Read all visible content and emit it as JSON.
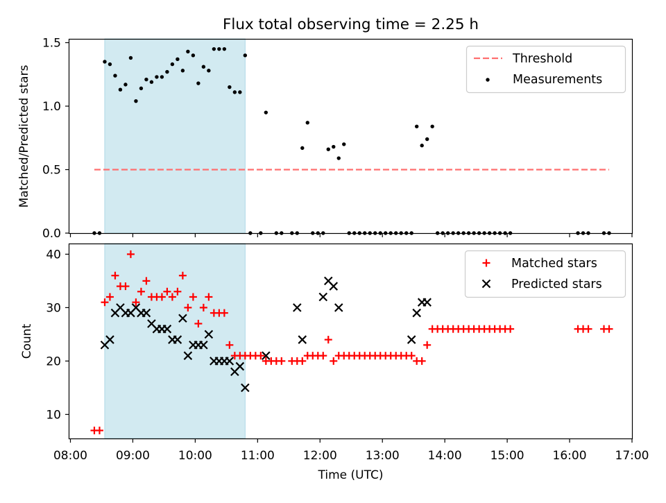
{
  "title": "Flux total observing time = 2.25 h",
  "colors": {
    "measurement": "#000000",
    "threshold": "#ff6f6f",
    "shade": "#add8e6",
    "matched": "#ff0000",
    "predicted": "#000000"
  },
  "chart_data": [
    {
      "type": "scatter",
      "ylabel": "Matched/Predicted stars",
      "ylim": [
        0,
        1.53
      ],
      "yticks": [
        0.0,
        0.5,
        1.0,
        1.5
      ],
      "ytick_labels": [
        "0.0",
        "0.5",
        "1.0",
        "1.5"
      ],
      "shaded_interval": [
        "08:33",
        "10:48"
      ],
      "threshold": 0.5,
      "threshold_x": [
        "08:23",
        "16:38"
      ],
      "legend": {
        "position": "upper right",
        "entries": [
          "Threshold",
          "Measurements"
        ]
      },
      "series": [
        {
          "name": "Measurements",
          "x": [
            "08:23",
            "08:28",
            "08:33",
            "08:38",
            "08:43",
            "08:48",
            "08:53",
            "08:58",
            "09:03",
            "09:08",
            "09:13",
            "09:18",
            "09:23",
            "09:28",
            "09:33",
            "09:38",
            "09:43",
            "09:48",
            "09:53",
            "09:58",
            "10:03",
            "10:08",
            "10:13",
            "10:18",
            "10:23",
            "10:28",
            "10:33",
            "10:38",
            "10:43",
            "10:48",
            "10:53",
            "11:03",
            "11:08",
            "11:18",
            "11:23",
            "11:33",
            "11:38",
            "11:43",
            "11:48",
            "11:53",
            "11:58",
            "12:03",
            "12:08",
            "12:13",
            "12:18",
            "12:23",
            "12:28",
            "12:33",
            "12:38",
            "12:43",
            "12:48",
            "12:53",
            "12:58",
            "13:03",
            "13:08",
            "13:13",
            "13:18",
            "13:23",
            "13:28",
            "13:33",
            "13:38",
            "13:43",
            "13:48",
            "13:53",
            "13:58",
            "14:03",
            "14:08",
            "14:13",
            "14:18",
            "14:23",
            "14:28",
            "14:33",
            "14:38",
            "14:43",
            "14:48",
            "14:53",
            "14:58",
            "15:03",
            "16:08",
            "16:13",
            "16:18",
            "16:33",
            "16:38"
          ],
          "y": [
            0,
            0,
            1.35,
            1.33,
            1.24,
            1.13,
            1.17,
            1.38,
            1.04,
            1.14,
            1.21,
            1.19,
            1.23,
            1.23,
            1.27,
            1.33,
            1.37,
            1.28,
            1.43,
            1.4,
            1.18,
            1.31,
            1.28,
            1.45,
            1.45,
            1.45,
            1.15,
            1.11,
            1.11,
            1.4,
            0,
            0,
            0.95,
            0,
            0,
            0,
            0,
            0.67,
            0.87,
            0,
            0,
            0,
            0.66,
            0.68,
            0.59,
            0.7,
            0,
            0,
            0,
            0,
            0,
            0,
            0,
            0,
            0,
            0,
            0,
            0,
            0,
            0.84,
            0.69,
            0.74,
            0.84,
            0,
            0,
            0,
            0,
            0,
            0,
            0,
            0,
            0,
            0,
            0,
            0,
            0,
            0,
            0,
            0,
            0,
            0,
            0,
            0
          ]
        }
      ]
    },
    {
      "type": "scatter",
      "ylabel": "Count",
      "xlabel": "Time (UTC)",
      "ylim": [
        5.5,
        42
      ],
      "yticks": [
        10,
        20,
        30,
        40
      ],
      "ytick_labels": [
        "10",
        "20",
        "30",
        "40"
      ],
      "xlim": [
        "07:59",
        "17:00"
      ],
      "xticks": [
        "08:00",
        "09:00",
        "10:00",
        "11:00",
        "12:00",
        "13:00",
        "14:00",
        "15:00",
        "16:00",
        "17:00"
      ],
      "shaded_interval": [
        "08:33",
        "10:48"
      ],
      "legend": {
        "position": "upper right",
        "entries": [
          "Matched stars",
          "Predicted stars"
        ]
      },
      "series": [
        {
          "name": "Matched stars",
          "marker": "+",
          "x": [
            "08:23",
            "08:28",
            "08:33",
            "08:38",
            "08:43",
            "08:48",
            "08:53",
            "08:58",
            "09:03",
            "09:08",
            "09:13",
            "09:18",
            "09:23",
            "09:28",
            "09:33",
            "09:38",
            "09:43",
            "09:48",
            "09:53",
            "09:58",
            "10:03",
            "10:08",
            "10:13",
            "10:18",
            "10:23",
            "10:28",
            "10:33",
            "10:38",
            "10:43",
            "10:48",
            "10:53",
            "10:58",
            "11:03",
            "11:08",
            "11:13",
            "11:18",
            "11:23",
            "11:33",
            "11:38",
            "11:43",
            "11:48",
            "11:53",
            "11:58",
            "12:03",
            "12:08",
            "12:13",
            "12:18",
            "12:23",
            "12:28",
            "12:33",
            "12:38",
            "12:43",
            "12:48",
            "12:53",
            "12:58",
            "13:03",
            "13:08",
            "13:13",
            "13:18",
            "13:23",
            "13:28",
            "13:33",
            "13:38",
            "13:43",
            "13:48",
            "13:53",
            "13:58",
            "14:03",
            "14:08",
            "14:13",
            "14:18",
            "14:23",
            "14:28",
            "14:33",
            "14:38",
            "14:43",
            "14:48",
            "14:53",
            "14:58",
            "15:03",
            "16:08",
            "16:13",
            "16:18",
            "16:33",
            "16:38"
          ],
          "y": [
            7,
            7,
            31,
            32,
            36,
            34,
            34,
            40,
            31,
            33,
            35,
            32,
            32,
            32,
            33,
            32,
            33,
            36,
            30,
            32,
            27,
            30,
            32,
            29,
            29,
            29,
            23,
            21,
            21,
            21,
            21,
            21,
            21,
            20,
            20,
            20,
            20,
            20,
            20,
            20,
            21,
            21,
            21,
            21,
            24,
            20,
            21,
            21,
            21,
            21,
            21,
            21,
            21,
            21,
            21,
            21,
            21,
            21,
            21,
            21,
            21,
            20,
            20,
            23,
            26,
            26,
            26,
            26,
            26,
            26,
            26,
            26,
            26,
            26,
            26,
            26,
            26,
            26,
            26,
            26,
            26,
            26,
            26,
            26,
            26
          ]
        },
        {
          "name": "Predicted stars",
          "marker": "x",
          "x": [
            "08:33",
            "08:38",
            "08:43",
            "08:48",
            "08:53",
            "08:58",
            "09:03",
            "09:08",
            "09:13",
            "09:18",
            "09:23",
            "09:28",
            "09:33",
            "09:38",
            "09:43",
            "09:48",
            "09:53",
            "09:58",
            "10:03",
            "10:08",
            "10:13",
            "10:18",
            "10:23",
            "10:28",
            "10:33",
            "10:38",
            "10:43",
            "10:48",
            "11:08",
            "11:38",
            "11:43",
            "12:03",
            "12:08",
            "12:13",
            "12:18",
            "13:28",
            "13:33",
            "13:38",
            "13:43"
          ],
          "y": [
            23,
            24,
            29,
            30,
            29,
            29,
            30,
            29,
            29,
            27,
            26,
            26,
            26,
            24,
            24,
            28,
            21,
            23,
            23,
            23,
            25,
            20,
            20,
            20,
            20,
            18,
            19,
            15,
            21,
            30,
            24,
            32,
            35,
            34,
            30,
            24,
            29,
            31,
            31
          ]
        }
      ]
    }
  ]
}
